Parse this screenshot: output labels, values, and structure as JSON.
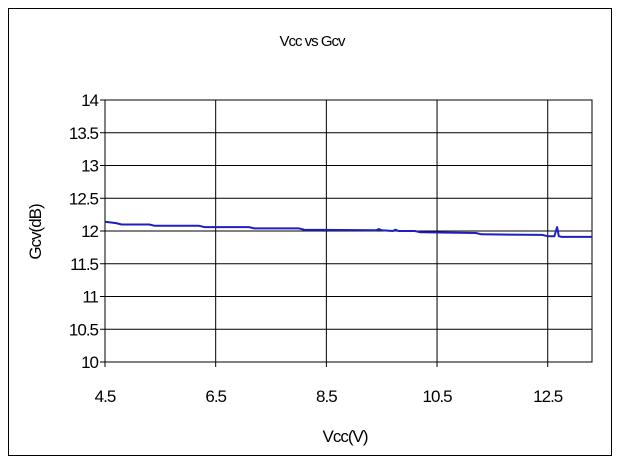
{
  "chart_data": {
    "type": "line",
    "title": "Vcc vs Gcv",
    "xlabel": "Vcc(V)",
    "ylabel": "Gcv(dB)",
    "xlim": [
      4.5,
      13.3
    ],
    "ylim": [
      10,
      14
    ],
    "x_ticks": [
      "4.5",
      "6.5",
      "8.5",
      "10.5",
      "12.5"
    ],
    "y_ticks": [
      "10",
      "10.5",
      "11",
      "11.5",
      "12",
      "12.5",
      "13",
      "13.5",
      "14"
    ],
    "grid": true,
    "legend": "none",
    "line_color": "#1f1fbf",
    "series": [
      {
        "x": [
          4.5,
          4.7,
          4.8,
          5.3,
          5.4,
          6.2,
          6.3,
          7.1,
          7.2,
          8.0,
          8.1,
          9.4,
          9.45,
          9.5,
          9.7,
          9.75,
          9.8,
          10.1,
          10.2,
          11.2,
          11.3,
          12.4,
          12.5,
          12.62,
          12.67,
          12.7,
          12.75,
          13.3
        ],
        "y": [
          12.14,
          12.12,
          12.1,
          12.1,
          12.08,
          12.08,
          12.06,
          12.06,
          12.04,
          12.04,
          12.02,
          12.01,
          12.03,
          12.01,
          12.0,
          12.02,
          12.0,
          12.0,
          11.98,
          11.97,
          11.95,
          11.94,
          11.92,
          11.92,
          12.06,
          11.92,
          11.91,
          11.91
        ]
      }
    ]
  }
}
